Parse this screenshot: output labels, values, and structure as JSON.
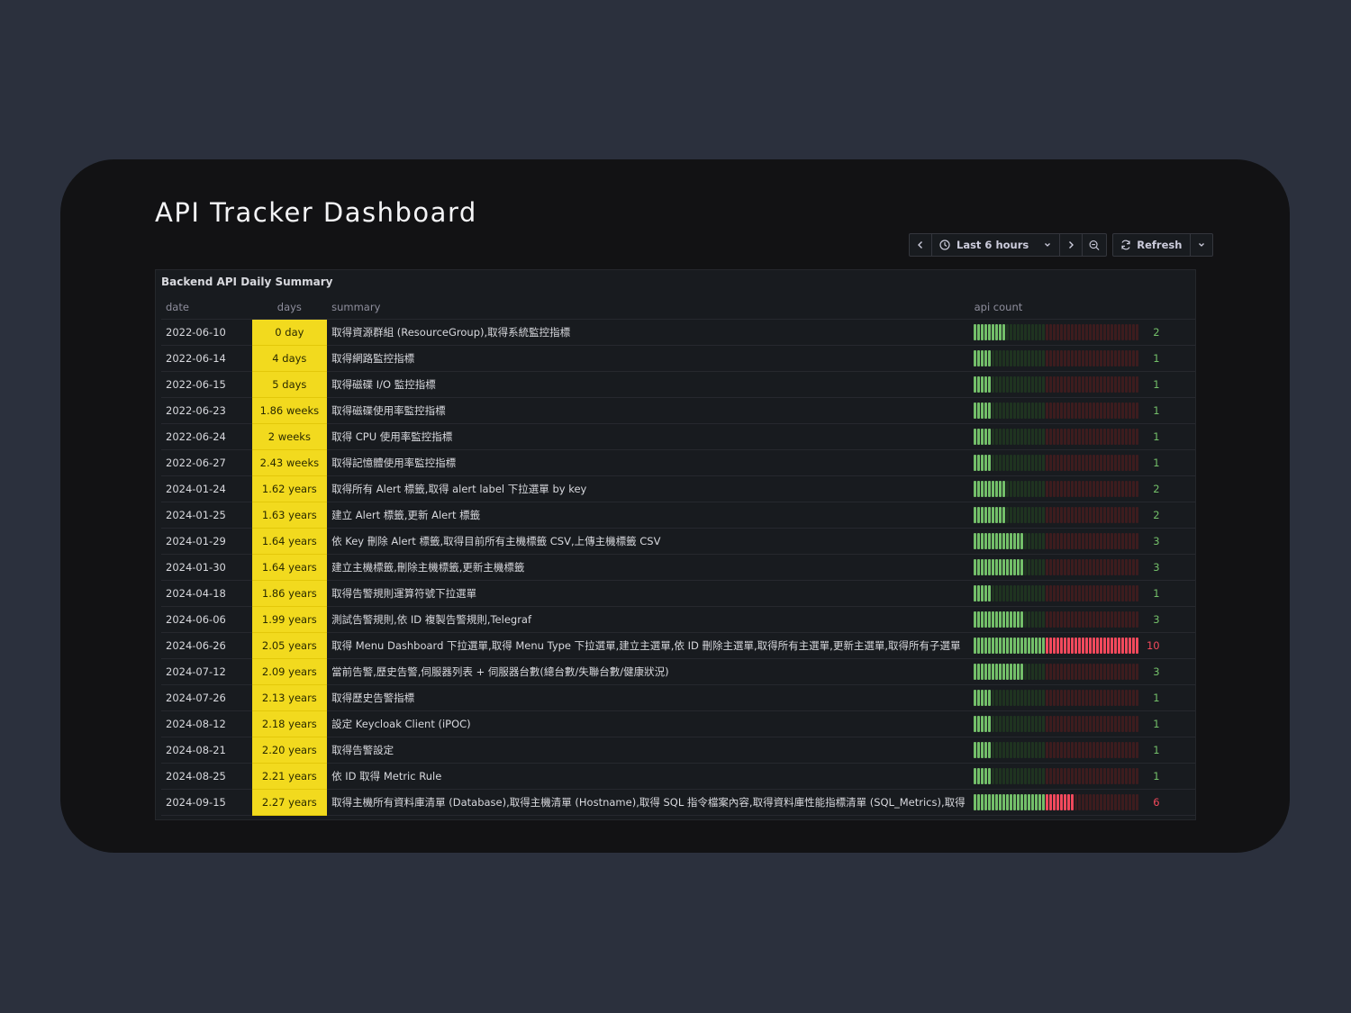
{
  "page": {
    "title": "API Tracker Dashboard"
  },
  "toolbar": {
    "time_range": "Last 6 hours",
    "refresh_label": "Refresh"
  },
  "panel": {
    "title": "Backend API Daily Summary",
    "columns": {
      "date": "date",
      "days": "days",
      "summary": "summary",
      "api_count": "api count"
    },
    "gauge_max": 10,
    "colors": {
      "days_bg": "#f2da1e",
      "green_on": "#73bf69",
      "green_off": "#1f3320",
      "red_on": "#f2495c",
      "red_off": "#3d1c1e",
      "count_green": "#73bf69",
      "count_red": "#f2495c"
    },
    "rows": [
      {
        "date": "2022-06-10",
        "days": "0 day",
        "summary": "取得資源群組 (ResourceGroup),取得系統監控指標",
        "count": 2
      },
      {
        "date": "2022-06-14",
        "days": "4 days",
        "summary": "取得網路監控指標",
        "count": 1
      },
      {
        "date": "2022-06-15",
        "days": "5 days",
        "summary": "取得磁碟 I/O 監控指標",
        "count": 1
      },
      {
        "date": "2022-06-23",
        "days": "1.86 weeks",
        "summary": "取得磁碟使用率監控指標",
        "count": 1
      },
      {
        "date": "2022-06-24",
        "days": "2 weeks",
        "summary": "取得 CPU 使用率監控指標",
        "count": 1
      },
      {
        "date": "2022-06-27",
        "days": "2.43 weeks",
        "summary": "取得記憶體使用率監控指標",
        "count": 1
      },
      {
        "date": "2024-01-24",
        "days": "1.62 years",
        "summary": "取得所有 Alert 標籤,取得 alert label 下拉選單 by key",
        "count": 2
      },
      {
        "date": "2024-01-25",
        "days": "1.63 years",
        "summary": "建立 Alert 標籤,更新 Alert 標籤",
        "count": 2
      },
      {
        "date": "2024-01-29",
        "days": "1.64 years",
        "summary": "依 Key 刪除 Alert 標籤,取得目前所有主機標籤 CSV,上傳主機標籤 CSV",
        "count": 3
      },
      {
        "date": "2024-01-30",
        "days": "1.64 years",
        "summary": "建立主機標籤,刪除主機標籤,更新主機標籤",
        "count": 3
      },
      {
        "date": "2024-04-18",
        "days": "1.86 years",
        "summary": "取得告警規則運算符號下拉選單",
        "count": 1
      },
      {
        "date": "2024-06-06",
        "days": "1.99 years",
        "summary": "測試告警規則,依 ID 複製告警規則,Telegraf",
        "count": 3
      },
      {
        "date": "2024-06-26",
        "days": "2.05 years",
        "summary": "取得 Menu Dashboard 下拉選單,取得 Menu Type 下拉選單,建立主選單,依 ID 刪除主選單,取得所有主選單,更新主選單,取得所有子選單",
        "count": 10
      },
      {
        "date": "2024-07-12",
        "days": "2.09 years",
        "summary": "當前告警,歷史告警,伺服器列表 + 伺服器台數(總台數/失聯台數/健康狀況)",
        "count": 3
      },
      {
        "date": "2024-07-26",
        "days": "2.13 years",
        "summary": "取得歷史告警指標",
        "count": 1
      },
      {
        "date": "2024-08-12",
        "days": "2.18 years",
        "summary": "設定 Keycloak Client (iPOC)",
        "count": 1
      },
      {
        "date": "2024-08-21",
        "days": "2.20 years",
        "summary": "取得告警設定",
        "count": 1
      },
      {
        "date": "2024-08-25",
        "days": "2.21 years",
        "summary": "依 ID 取得 Metric Rule",
        "count": 1
      },
      {
        "date": "2024-09-15",
        "days": "2.27 years",
        "summary": "取得主機所有資料庫清單 (Database),取得主機清單 (Hostname),取得 SQL 指令檔案內容,取得資料庫性能指標清單 (SQL_Metrics),取得",
        "count": 6
      }
    ]
  }
}
